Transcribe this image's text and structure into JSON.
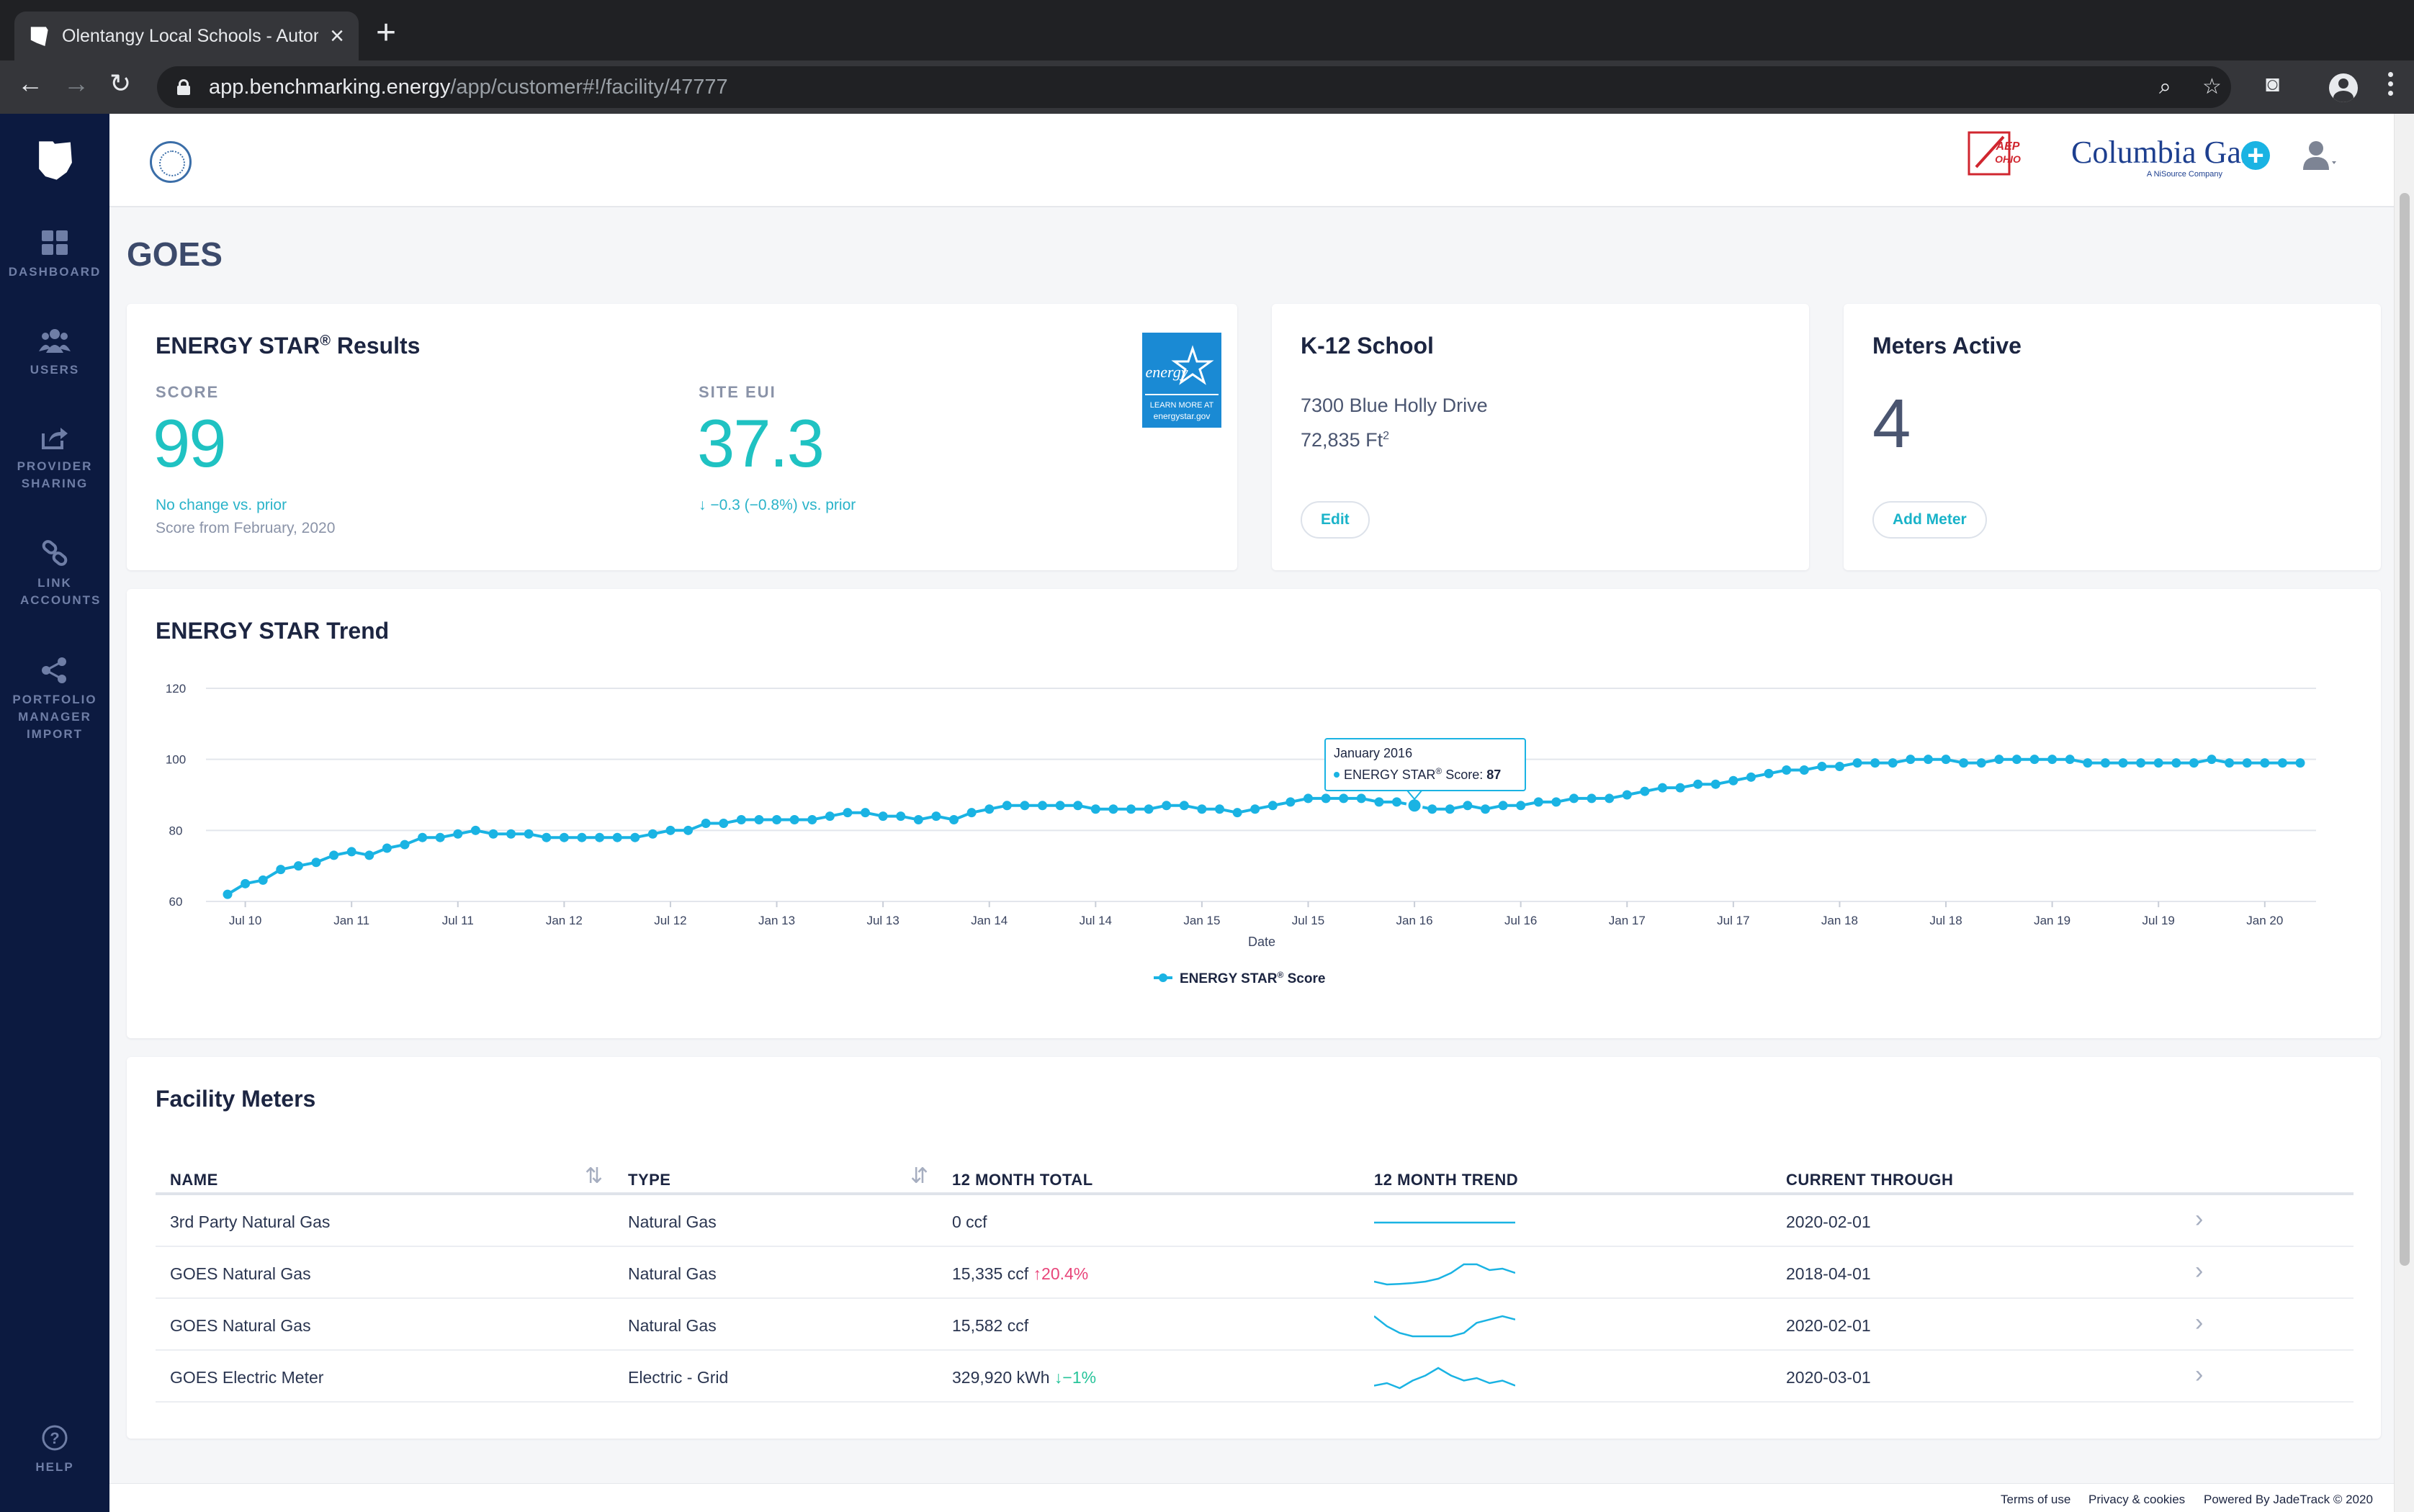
{
  "browser": {
    "tab_title": "Olentangy Local Schools - Autom",
    "url_host": "app.benchmarking.energy",
    "url_path": "/app/customer#!/facility/47777"
  },
  "sidebar": {
    "items": [
      {
        "label": "DASHBOARD",
        "icon": "grid-icon"
      },
      {
        "label": "USERS",
        "icon": "users-icon"
      },
      {
        "label": "PROVIDER SHARING",
        "icon": "share-icon"
      },
      {
        "label": "LINK ACCOUNTS",
        "icon": "link-icon"
      },
      {
        "label": "PORTFOLIO MANAGER IMPORT",
        "icon": "network-icon"
      }
    ],
    "help_label": "HELP"
  },
  "header": {
    "aep_text": "AEP OHIO",
    "columbia_name": "Columbia Gas",
    "columbia_sub": "A NiSource Company"
  },
  "page": {
    "title": "GOES"
  },
  "energy_star": {
    "title": "ENERGY STAR",
    "title_reg": "®",
    "title_suffix": " Results",
    "score_label": "SCORE",
    "score_value": "99",
    "score_note": "No change vs. prior",
    "score_from": "Score from February, 2020",
    "eui_label": "SITE EUI",
    "eui_value": "37.3",
    "eui_note": "−0.3 (−0.8%) vs. prior",
    "logo_text_1": "energy",
    "logo_text_2": "LEARN MORE AT",
    "logo_text_3": "energystar.gov"
  },
  "facility": {
    "type": "K-12 School",
    "address": "7300 Blue Holly Drive",
    "area": "72,835 Ft",
    "area_sup": "2",
    "edit_label": "Edit"
  },
  "meters": {
    "title": "Meters Active",
    "count": "4",
    "add_label": "Add Meter"
  },
  "trend": {
    "title": "ENERGY STAR Trend",
    "tooltip_date": "January 2016",
    "tooltip_series": "ENERGY STAR",
    "tooltip_reg": "®",
    "tooltip_label": " Score: ",
    "tooltip_value": "87",
    "legend_label": "ENERGY STAR",
    "legend_reg": "®",
    "legend_suffix": " Score"
  },
  "chart_data": {
    "type": "line",
    "title": "ENERGY STAR Trend",
    "xlabel": "Date",
    "ylabel": "",
    "ylim": [
      60,
      120
    ],
    "yticks": [
      60,
      80,
      100,
      120
    ],
    "grid": true,
    "legend": "bottom-center",
    "color": "#1ab3e3",
    "x_tick_labels": [
      "Jul 10",
      "Jan 11",
      "Jul 11",
      "Jan 12",
      "Jul 12",
      "Jan 13",
      "Jul 13",
      "Jan 14",
      "Jul 14",
      "Jan 15",
      "Jul 15",
      "Jan 16",
      "Jul 16",
      "Jan 17",
      "Jul 17",
      "Jan 18",
      "Jul 18",
      "Jan 19",
      "Jul 19",
      "Jan 20"
    ],
    "x_start": "2010-06",
    "x_end": "2020-02",
    "series": [
      {
        "name": "ENERGY STAR® Score",
        "values": [
          62,
          65,
          66,
          69,
          70,
          71,
          73,
          74,
          73,
          75,
          76,
          78,
          78,
          79,
          80,
          79,
          79,
          79,
          78,
          78,
          78,
          78,
          78,
          78,
          79,
          80,
          80,
          82,
          82,
          83,
          83,
          83,
          83,
          83,
          84,
          85,
          85,
          84,
          84,
          83,
          84,
          83,
          85,
          86,
          87,
          87,
          87,
          87,
          87,
          86,
          86,
          86,
          86,
          87,
          87,
          86,
          86,
          85,
          86,
          87,
          88,
          89,
          89,
          89,
          89,
          88,
          88,
          87,
          86,
          86,
          87,
          86,
          87,
          87,
          88,
          88,
          89,
          89,
          89,
          90,
          91,
          92,
          92,
          93,
          93,
          94,
          95,
          96,
          97,
          97,
          98,
          98,
          99,
          99,
          99,
          100,
          100,
          100,
          99,
          99,
          100,
          100,
          100,
          100,
          100,
          99,
          99,
          99,
          99,
          99,
          99,
          99,
          100,
          99,
          99,
          99,
          99,
          99
        ]
      }
    ],
    "highlight": {
      "x_label": "January 2016",
      "value": 87
    }
  },
  "facility_meters": {
    "title": "Facility Meters",
    "columns": [
      "NAME",
      "TYPE",
      "12 MONTH TOTAL",
      "12 MONTH TREND",
      "CURRENT THROUGH"
    ],
    "rows": [
      {
        "name": "3rd Party Natural Gas",
        "type": "Natural Gas",
        "total": "0 ccf",
        "change": "",
        "change_dir": "",
        "through": "2020-02-01",
        "spark": [
          0,
          0,
          0,
          0,
          0,
          0,
          0,
          0,
          0,
          0,
          0,
          0
        ]
      },
      {
        "name": "GOES Natural Gas",
        "type": "Natural Gas",
        "total": "15,335 ccf",
        "change": "20.4%",
        "change_dir": "up",
        "through": "2018-04-01",
        "spark": [
          3,
          2,
          2.2,
          2.5,
          3,
          4,
          6,
          9,
          9,
          7,
          7.5,
          6
        ]
      },
      {
        "name": "GOES Natural Gas",
        "type": "Natural Gas",
        "total": "15,582 ccf",
        "change": "",
        "change_dir": "",
        "through": "2020-02-01",
        "spark": [
          8,
          5,
          3,
          2,
          2,
          2,
          2,
          3,
          6,
          7,
          8,
          7
        ]
      },
      {
        "name": "GOES Electric Meter",
        "type": "Electric - Grid",
        "total": "329,920 kWh",
        "change": "1%",
        "change_dir": "down",
        "through": "2020-03-01",
        "spark": [
          4,
          5,
          3,
          6,
          8,
          11,
          8,
          6,
          7,
          5,
          6,
          4
        ]
      }
    ]
  },
  "footer": {
    "terms": "Terms of use",
    "privacy": "Privacy & cookies",
    "powered": "Powered By JadeTrack © 2020"
  }
}
